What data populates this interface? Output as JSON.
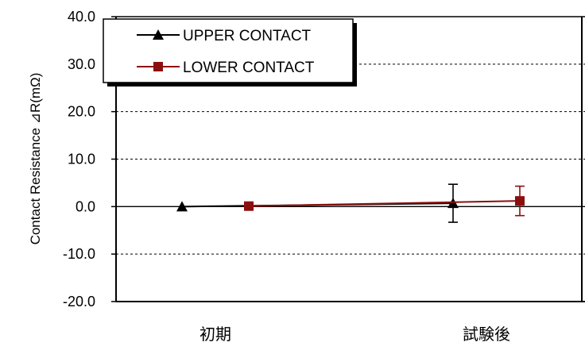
{
  "chart_data": {
    "type": "line",
    "ylabel": "Contact Resistance ⊿R(mΩ)",
    "ylim": [
      -20,
      40
    ],
    "yticks": [
      "40.0",
      "30.0",
      "20.0",
      "10.0",
      "0.0",
      "-10.0",
      "-20.0"
    ],
    "categories": [
      "初期",
      "試験後"
    ],
    "grid": "dashed horizontal",
    "legend_position": "top-left",
    "series": [
      {
        "name": "UPPER CONTACT",
        "color": "#000000",
        "marker": "triangle",
        "values": [
          0.0,
          0.7
        ],
        "error_low": [
          0.0,
          -3.3
        ],
        "error_high": [
          0.0,
          4.7
        ]
      },
      {
        "name": "LOWER CONTACT",
        "color": "#8b0f0f",
        "marker": "square",
        "values": [
          0.1,
          1.2
        ],
        "error_low": [
          0.1,
          -1.9
        ],
        "error_high": [
          0.1,
          4.3
        ]
      }
    ]
  }
}
